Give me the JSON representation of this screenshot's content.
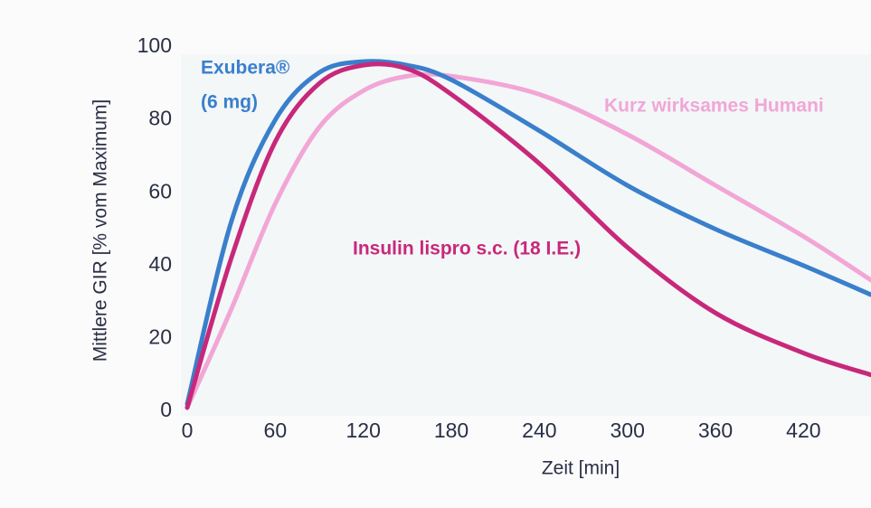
{
  "chart_data": {
    "type": "line",
    "xlabel": "Zeit [min]",
    "ylabel": "Mittlere GIR [% vom Maximum]",
    "x": [
      0,
      30,
      60,
      90,
      120,
      150,
      180,
      240,
      300,
      360,
      420,
      466
    ],
    "series": [
      {
        "name": "Kurz wirksames Humani",
        "color": "#f2a6d6",
        "values": [
          1,
          28,
          57,
          78,
          88,
          92,
          92,
          87,
          76,
          62,
          48,
          36
        ]
      },
      {
        "name": "Exubera®",
        "dose": "(6 mg)",
        "color": "#3a7fcc",
        "values": [
          2,
          52,
          80,
          93,
          96,
          95,
          91,
          77,
          62,
          50,
          40,
          32
        ]
      },
      {
        "name": "Insulin lispro s.c. (18 I.E.)",
        "color": "#c8287a",
        "values": [
          1,
          42,
          74,
          90,
          95,
          94,
          87,
          68,
          45,
          27,
          16,
          10
        ]
      }
    ],
    "xlim": [
      0,
      466
    ],
    "ylim": [
      0,
      100
    ],
    "xticks": [
      0,
      60,
      120,
      180,
      240,
      300,
      360,
      420
    ],
    "yticks": [
      0,
      20,
      40,
      60,
      80,
      100
    ],
    "grid": false
  }
}
